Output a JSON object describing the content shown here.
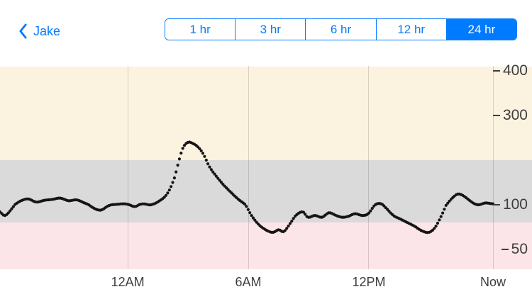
{
  "header": {
    "back": {
      "label": "Jake"
    },
    "segmented": {
      "items": [
        {
          "label": "1 hr",
          "selected": false
        },
        {
          "label": "3 hr",
          "selected": false
        },
        {
          "label": "6 hr",
          "selected": false
        },
        {
          "label": "12 hr",
          "selected": false
        },
        {
          "label": "24 hr",
          "selected": true
        }
      ]
    }
  },
  "colors": {
    "accent": "#007AFF"
  },
  "chart_data": {
    "type": "scatter",
    "x_axis": {
      "t_unit": "hours_from_window_start",
      "window_hours": 24.5,
      "ticks": [
        {
          "hour": 6.35,
          "label": "12AM"
        },
        {
          "hour": 12.34,
          "label": "6AM"
        },
        {
          "hour": 18.33,
          "label": "12PM"
        },
        {
          "hour": 24.5,
          "label": "Now"
        }
      ]
    },
    "y_axis": {
      "tick_values": [
        400,
        300,
        100,
        50
      ],
      "scale_anchor_values": [
        400,
        300,
        200,
        100,
        50
      ],
      "range": [
        28,
        410
      ]
    },
    "thresholds": {
      "high": 200,
      "low": 80
    },
    "bands": [
      {
        "name": "high",
        "from": 200,
        "to": 410,
        "color": "#FBF3E0"
      },
      {
        "name": "in_range",
        "from": 80,
        "to": 200,
        "color": "#DADADA"
      },
      {
        "name": "low",
        "from": 28,
        "to": 80,
        "color": "#FCE5E8"
      }
    ],
    "series": [
      {
        "name": "glucose",
        "style": "dots",
        "color": "#151515",
        "sample_minutes": 5,
        "keypoints": [
          [
            0,
            92
          ],
          [
            0.25,
            88
          ],
          [
            0.6,
            96
          ],
          [
            1.0,
            108
          ],
          [
            1.4,
            113
          ],
          [
            1.8,
            106
          ],
          [
            2.2,
            110
          ],
          [
            2.6,
            112
          ],
          [
            3.0,
            115
          ],
          [
            3.4,
            109
          ],
          [
            3.8,
            111
          ],
          [
            4.2,
            104
          ],
          [
            4.6,
            97
          ],
          [
            5.0,
            94
          ],
          [
            5.4,
            99
          ],
          [
            5.8,
            101
          ],
          [
            6.2,
            102
          ],
          [
            6.7,
            98
          ],
          [
            7.1,
            102
          ],
          [
            7.5,
            100
          ],
          [
            7.9,
            108
          ],
          [
            8.3,
            124
          ],
          [
            8.65,
            158
          ],
          [
            8.9,
            200
          ],
          [
            9.1,
            228
          ],
          [
            9.35,
            240
          ],
          [
            9.6,
            237
          ],
          [
            9.85,
            229
          ],
          [
            10.1,
            214
          ],
          [
            10.4,
            186
          ],
          [
            10.75,
            164
          ],
          [
            11.1,
            145
          ],
          [
            11.45,
            129
          ],
          [
            11.8,
            114
          ],
          [
            12.2,
            100
          ],
          [
            12.5,
            88
          ],
          [
            12.85,
            78
          ],
          [
            13.2,
            72
          ],
          [
            13.55,
            69
          ],
          [
            13.85,
            72
          ],
          [
            14.1,
            70
          ],
          [
            14.45,
            80
          ],
          [
            14.7,
            88
          ],
          [
            15.05,
            92
          ],
          [
            15.3,
            86
          ],
          [
            15.65,
            88
          ],
          [
            16.0,
            86
          ],
          [
            16.35,
            91
          ],
          [
            16.7,
            88
          ],
          [
            17.0,
            86
          ],
          [
            17.3,
            87
          ],
          [
            17.65,
            90
          ],
          [
            18.0,
            88
          ],
          [
            18.3,
            90
          ],
          [
            18.6,
            99
          ],
          [
            18.85,
            103
          ],
          [
            19.2,
            96
          ],
          [
            19.55,
            88
          ],
          [
            19.9,
            84
          ],
          [
            20.25,
            80
          ],
          [
            20.6,
            76
          ],
          [
            20.95,
            71
          ],
          [
            21.3,
            69
          ],
          [
            21.6,
            74
          ],
          [
            21.9,
            86
          ],
          [
            22.2,
            101
          ],
          [
            22.5,
            116
          ],
          [
            22.75,
            124
          ],
          [
            23.0,
            121
          ],
          [
            23.3,
            111
          ],
          [
            23.55,
            103
          ],
          [
            23.8,
            100
          ],
          [
            24.1,
            104
          ],
          [
            24.35,
            103
          ],
          [
            24.5,
            102
          ]
        ]
      }
    ]
  }
}
